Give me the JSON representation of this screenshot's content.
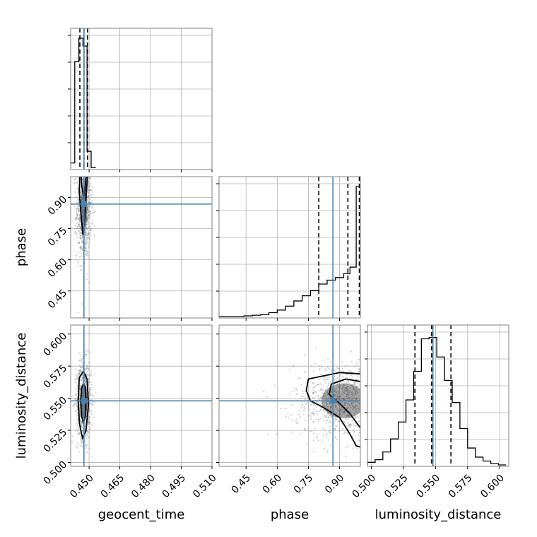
{
  "chart_data": {
    "type": "corner",
    "grid": true,
    "colors": {
      "truth": "#4682b4",
      "hist": "#000000",
      "points": "#7f7f7f"
    },
    "parameters": [
      {
        "name": "geocent_time",
        "xlabel": "geocent_time",
        "ylabel": "",
        "range": [
          0.441,
          0.51
        ],
        "ticks": [
          "0.450",
          "0.465",
          "0.480",
          "0.495",
          "0.510"
        ],
        "tick_values": [
          0.45,
          0.465,
          0.48,
          0.495,
          0.51
        ],
        "truth": 0.4475,
        "quantiles": [
          0.4455,
          0.4475,
          0.4492
        ]
      },
      {
        "name": "phase",
        "xlabel": "phase",
        "ylabel": "phase",
        "range": [
          0.32,
          1.0
        ],
        "ticks": [
          "0.45",
          "0.60",
          "0.75",
          "0.90"
        ],
        "tick_values": [
          0.45,
          0.6,
          0.75,
          0.9
        ],
        "truth": 0.868,
        "quantiles": [
          0.8,
          0.94,
          0.995
        ]
      },
      {
        "name": "luminosity_distance",
        "xlabel": "luminosity_distance",
        "ylabel": "luminosity_distance",
        "range": [
          0.497,
          0.607
        ],
        "ticks": [
          "0.500",
          "0.525",
          "0.550",
          "0.575",
          "0.600"
        ],
        "tick_values": [
          0.5,
          0.525,
          0.55,
          0.575,
          0.6
        ],
        "truth": 0.548,
        "quantiles": [
          0.534,
          0.547,
          0.562
        ]
      }
    ],
    "histograms": {
      "geocent_time": {
        "edges": [
          0.441,
          0.443,
          0.445,
          0.447,
          0.449,
          0.451,
          0.453
        ],
        "counts": [
          0.04,
          0.82,
          1.0,
          0.94,
          0.13,
          0.005
        ]
      },
      "phase": {
        "edges": [
          0.32,
          0.36,
          0.4,
          0.44,
          0.48,
          0.52,
          0.56,
          0.6,
          0.64,
          0.68,
          0.72,
          0.76,
          0.8,
          0.84,
          0.88,
          0.92,
          0.95,
          0.98,
          1.0
        ],
        "counts": [
          0.0,
          0.0,
          0.0,
          0.005,
          0.01,
          0.015,
          0.03,
          0.05,
          0.08,
          0.12,
          0.16,
          0.2,
          0.25,
          0.28,
          0.3,
          0.33,
          0.38,
          1.0
        ]
      },
      "luminosity_distance": {
        "edges": [
          0.497,
          0.503,
          0.509,
          0.515,
          0.521,
          0.527,
          0.533,
          0.539,
          0.545,
          0.551,
          0.557,
          0.563,
          0.569,
          0.575,
          0.581,
          0.587,
          0.593,
          0.599,
          0.605
        ],
        "counts": [
          0.02,
          0.04,
          0.1,
          0.2,
          0.33,
          0.5,
          0.72,
          0.97,
          0.98,
          0.83,
          0.65,
          0.48,
          0.28,
          0.13,
          0.06,
          0.03,
          0.01,
          0.0
        ]
      }
    },
    "scatter_seeds": {
      "phase_vs_geocent_time": {
        "center_x": 0.4475,
        "center_y": 0.85,
        "sx": 0.0018,
        "sy": 0.12,
        "n": 900
      },
      "luminosity_distance_vs_geocent_time": {
        "center_x": 0.4475,
        "center_y": 0.548,
        "sx": 0.0018,
        "sy": 0.015,
        "n": 900
      },
      "luminosity_distance_vs_phase": {
        "center_x": 0.92,
        "center_y": 0.548,
        "sx": 0.12,
        "sy": 0.015,
        "n": 900
      }
    },
    "contours": {
      "phase_vs_geocent_time": [
        [
          [
            0.4455,
            1.0
          ],
          [
            0.4452,
            0.93
          ],
          [
            0.446,
            0.82
          ],
          [
            0.447,
            0.72
          ],
          [
            0.4478,
            0.79
          ],
          [
            0.4485,
            0.9
          ],
          [
            0.4492,
            1.0
          ]
        ],
        [
          [
            0.4462,
            1.0
          ],
          [
            0.4465,
            0.95
          ],
          [
            0.4475,
            0.9
          ],
          [
            0.4482,
            0.96
          ],
          [
            0.4485,
            1.0
          ]
        ]
      ],
      "luminosity_distance_vs_geocent_time": [
        [
          [
            0.4472,
            0.571
          ],
          [
            0.4452,
            0.566
          ],
          [
            0.4447,
            0.548
          ],
          [
            0.4453,
            0.53
          ],
          [
            0.4468,
            0.519
          ],
          [
            0.4485,
            0.525
          ],
          [
            0.4497,
            0.545
          ],
          [
            0.449,
            0.565
          ],
          [
            0.4472,
            0.571
          ]
        ],
        [
          [
            0.4473,
            0.561
          ],
          [
            0.4463,
            0.558
          ],
          [
            0.4459,
            0.548
          ],
          [
            0.4463,
            0.536
          ],
          [
            0.4473,
            0.531
          ],
          [
            0.4482,
            0.537
          ],
          [
            0.4485,
            0.549
          ],
          [
            0.448,
            0.559
          ],
          [
            0.4473,
            0.561
          ]
        ]
      ],
      "luminosity_distance_vs_phase": [
        [
          [
            1.0,
            0.569
          ],
          [
            0.9,
            0.57
          ],
          [
            0.75,
            0.565
          ],
          [
            0.74,
            0.556
          ],
          [
            0.76,
            0.548
          ],
          [
            0.82,
            0.543
          ],
          [
            0.9,
            0.535
          ],
          [
            0.95,
            0.522
          ],
          [
            0.98,
            0.513
          ],
          [
            1.0,
            0.512
          ]
        ],
        [
          [
            1.0,
            0.563
          ],
          [
            0.93,
            0.565
          ],
          [
            0.86,
            0.561
          ],
          [
            0.85,
            0.553
          ],
          [
            0.9,
            0.546
          ],
          [
            0.95,
            0.538
          ],
          [
            1.0,
            0.527
          ]
        ]
      ]
    }
  }
}
